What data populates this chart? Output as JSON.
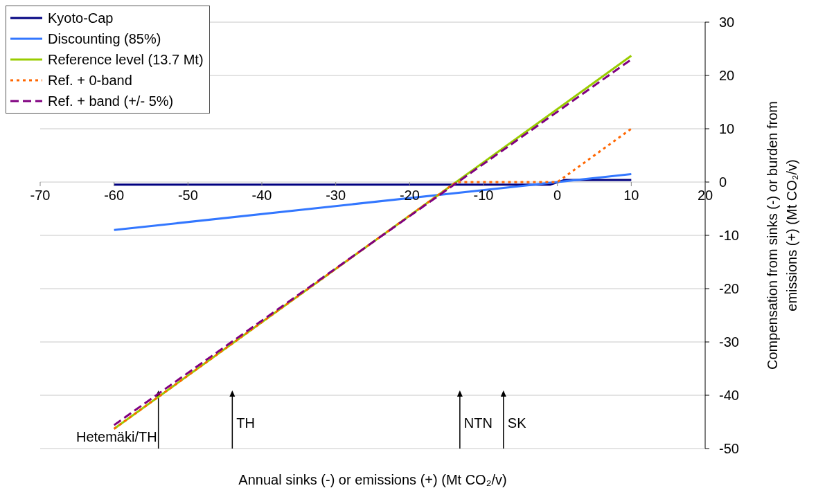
{
  "chart_data": {
    "type": "line",
    "xlabel": "Annual sinks (-) or emissions (+) (Mt CO₂/v)",
    "ylabel": "Compensation from sinks (-) or burden from emissions (+) (Mt CO₂/v)",
    "xlim": [
      -70,
      20
    ],
    "xticks": [
      -70,
      -60,
      -50,
      -40,
      -30,
      -20,
      -10,
      0,
      10,
      20
    ],
    "ylim": [
      -50,
      30
    ],
    "yticks": [
      -50,
      -40,
      -30,
      -20,
      -10,
      0,
      10,
      20,
      30
    ],
    "grid": "y",
    "legend": "top left",
    "series": [
      {
        "name": "Kyoto-Cap",
        "color": "#000080",
        "x": [
          -60,
          -1,
          1,
          10
        ],
        "values": [
          -0.5,
          -0.5,
          0.4,
          0.4
        ],
        "line_style": "solid"
      },
      {
        "name": "Discounting (85%)",
        "color": "#3377ff",
        "x": [
          -60,
          10
        ],
        "values": [
          -9,
          1.5
        ],
        "line_style": "solid"
      },
      {
        "name": "Reference level (13.7 Mt)",
        "color": "#99cc00",
        "x": [
          -60,
          10
        ],
        "values": [
          -46.3,
          23.7
        ],
        "line_style": "solid"
      },
      {
        "name": "Ref. + 0-band",
        "color": "#ff6600",
        "x": [
          -60,
          -13.7,
          0,
          10
        ],
        "values": [
          -46.3,
          0,
          0,
          10
        ],
        "line_style": "dotted"
      },
      {
        "name": "Ref. + band (+/- 5%)",
        "color": "#800080",
        "x": [
          -60,
          10
        ],
        "values": [
          -45.6,
          23
        ],
        "line_style": "dashed"
      }
    ],
    "ref_lines": [
      {
        "axis": "x",
        "value": -54,
        "label": "Hetemäki/TH"
      },
      {
        "axis": "x",
        "value": -44,
        "label": "TH"
      },
      {
        "axis": "x",
        "value": -13.2,
        "label": "NTN"
      },
      {
        "axis": "x",
        "value": -7.3,
        "label": "SK"
      }
    ]
  }
}
